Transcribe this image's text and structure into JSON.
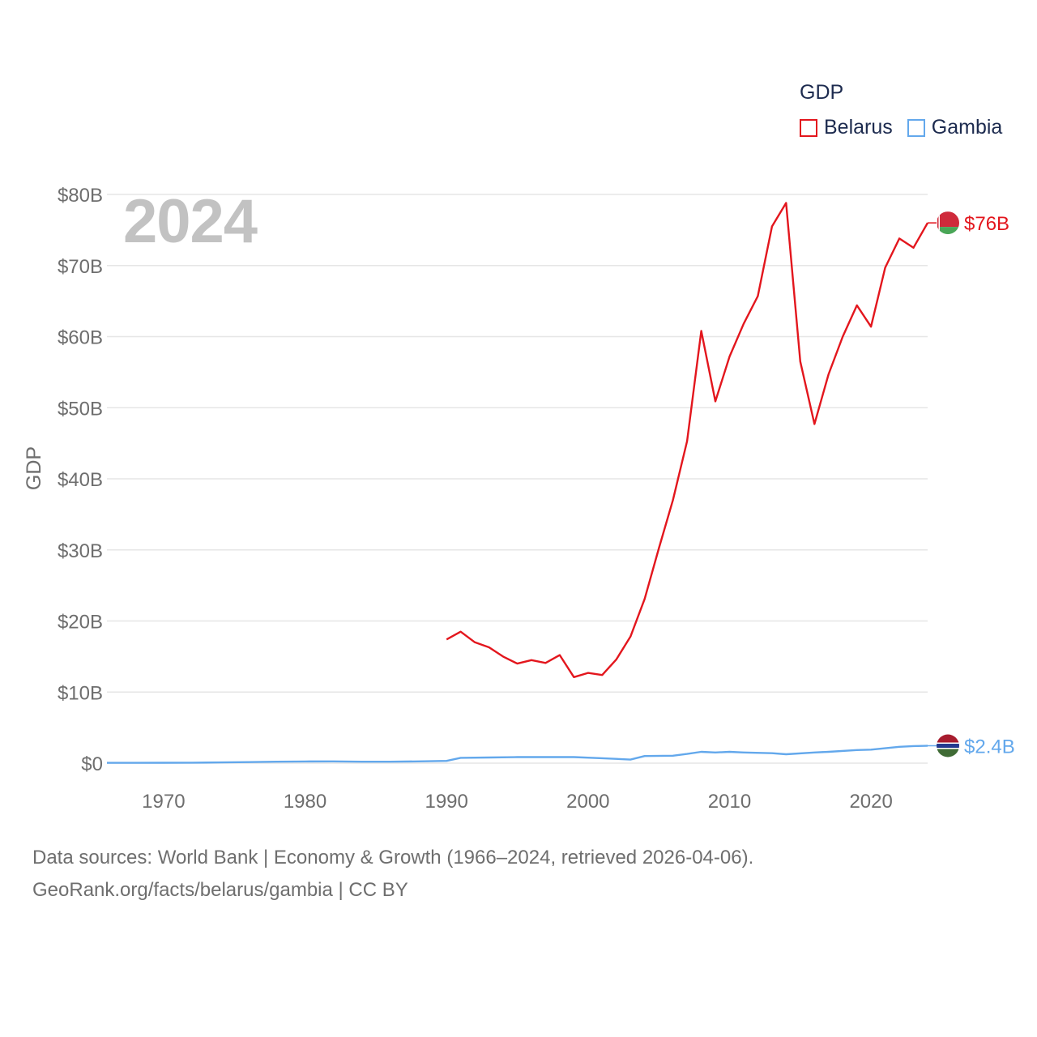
{
  "legend": {
    "title": "GDP",
    "items": [
      {
        "name": "Belarus",
        "color": "#e3161d"
      },
      {
        "name": "Gambia",
        "color": "#63a8ec"
      }
    ]
  },
  "year_label": "2024",
  "footer": {
    "line1": "Data sources: World Bank | Economy & Growth (1966–2024, retrieved 2026-04-06).",
    "line2": "GeoRank.org/facts/belarus/gambia | CC BY"
  },
  "chart_data": {
    "type": "line",
    "title": "GDP",
    "ylabel": "GDP",
    "xlabel": "",
    "xlim": [
      1966,
      2024
    ],
    "ylim": [
      0,
      80
    ],
    "y_unit": "billion USD",
    "y_ticks": [
      {
        "value": 0,
        "label": "$0"
      },
      {
        "value": 10,
        "label": "$10B"
      },
      {
        "value": 20,
        "label": "$20B"
      },
      {
        "value": 30,
        "label": "$30B"
      },
      {
        "value": 40,
        "label": "$40B"
      },
      {
        "value": 50,
        "label": "$50B"
      },
      {
        "value": 60,
        "label": "$60B"
      },
      {
        "value": 70,
        "label": "$70B"
      },
      {
        "value": 80,
        "label": "$80B"
      }
    ],
    "x_ticks": [
      {
        "value": 1970,
        "label": "1970"
      },
      {
        "value": 1980,
        "label": "1980"
      },
      {
        "value": 1990,
        "label": "1990"
      },
      {
        "value": 2000,
        "label": "2000"
      },
      {
        "value": 2010,
        "label": "2010"
      },
      {
        "value": 2020,
        "label": "2020"
      }
    ],
    "grid": true,
    "series": [
      {
        "name": "Belarus",
        "color": "#e3161d",
        "end_label": "$76B",
        "x": [
          1990,
          1991,
          1992,
          1993,
          1994,
          1995,
          1996,
          1997,
          1998,
          1999,
          2000,
          2001,
          2002,
          2003,
          2004,
          2005,
          2006,
          2007,
          2008,
          2009,
          2010,
          2011,
          2012,
          2013,
          2014,
          2015,
          2016,
          2017,
          2018,
          2019,
          2020,
          2021,
          2022,
          2023,
          2024
        ],
        "values": [
          17.4,
          18.5,
          17.0,
          16.3,
          15.0,
          14.0,
          14.5,
          14.1,
          15.2,
          12.1,
          12.7,
          12.4,
          14.6,
          17.8,
          23.1,
          30.2,
          37.0,
          45.3,
          60.8,
          50.9,
          57.2,
          61.8,
          65.7,
          75.5,
          78.8,
          56.5,
          47.7,
          54.7,
          60.0,
          64.4,
          61.4,
          69.7,
          73.8,
          72.5,
          76.0
        ]
      },
      {
        "name": "Gambia",
        "color": "#63a8ec",
        "end_label": "$2.4B",
        "x": [
          1966,
          1968,
          1970,
          1972,
          1974,
          1976,
          1978,
          1980,
          1982,
          1984,
          1986,
          1988,
          1990,
          1991,
          1993,
          1995,
          1997,
          1999,
          2001,
          2003,
          2004,
          2006,
          2007,
          2008,
          2009,
          2010,
          2011,
          2013,
          2014,
          2016,
          2017,
          2019,
          2020,
          2021,
          2022,
          2023,
          2024
        ],
        "values": [
          0.05,
          0.05,
          0.06,
          0.07,
          0.1,
          0.15,
          0.2,
          0.24,
          0.25,
          0.2,
          0.2,
          0.25,
          0.32,
          0.75,
          0.8,
          0.85,
          0.85,
          0.85,
          0.7,
          0.5,
          1.0,
          1.05,
          1.3,
          1.6,
          1.5,
          1.6,
          1.5,
          1.4,
          1.25,
          1.5,
          1.6,
          1.85,
          1.9,
          2.1,
          2.3,
          2.4,
          2.45
        ]
      }
    ]
  }
}
